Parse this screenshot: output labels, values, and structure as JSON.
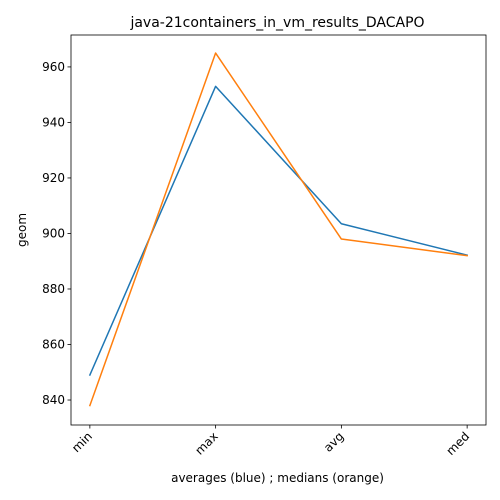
{
  "chart_data": {
    "type": "line",
    "title": "java-21containers_in_vm_results_DACAPO",
    "xlabel": "averages (blue) ; medians (orange)",
    "ylabel": "geom",
    "categories": [
      "min",
      "max",
      "avg",
      "med"
    ],
    "yticks": [
      840,
      860,
      880,
      900,
      920,
      940,
      960
    ],
    "ylim": [
      831,
      971.5
    ],
    "grid": false,
    "series": [
      {
        "color": "#1f77b4",
        "values": [
          849,
          953,
          903.5,
          892.2
        ]
      },
      {
        "color": "#ff7f0e",
        "values": [
          838,
          965,
          898,
          892
        ]
      }
    ]
  }
}
